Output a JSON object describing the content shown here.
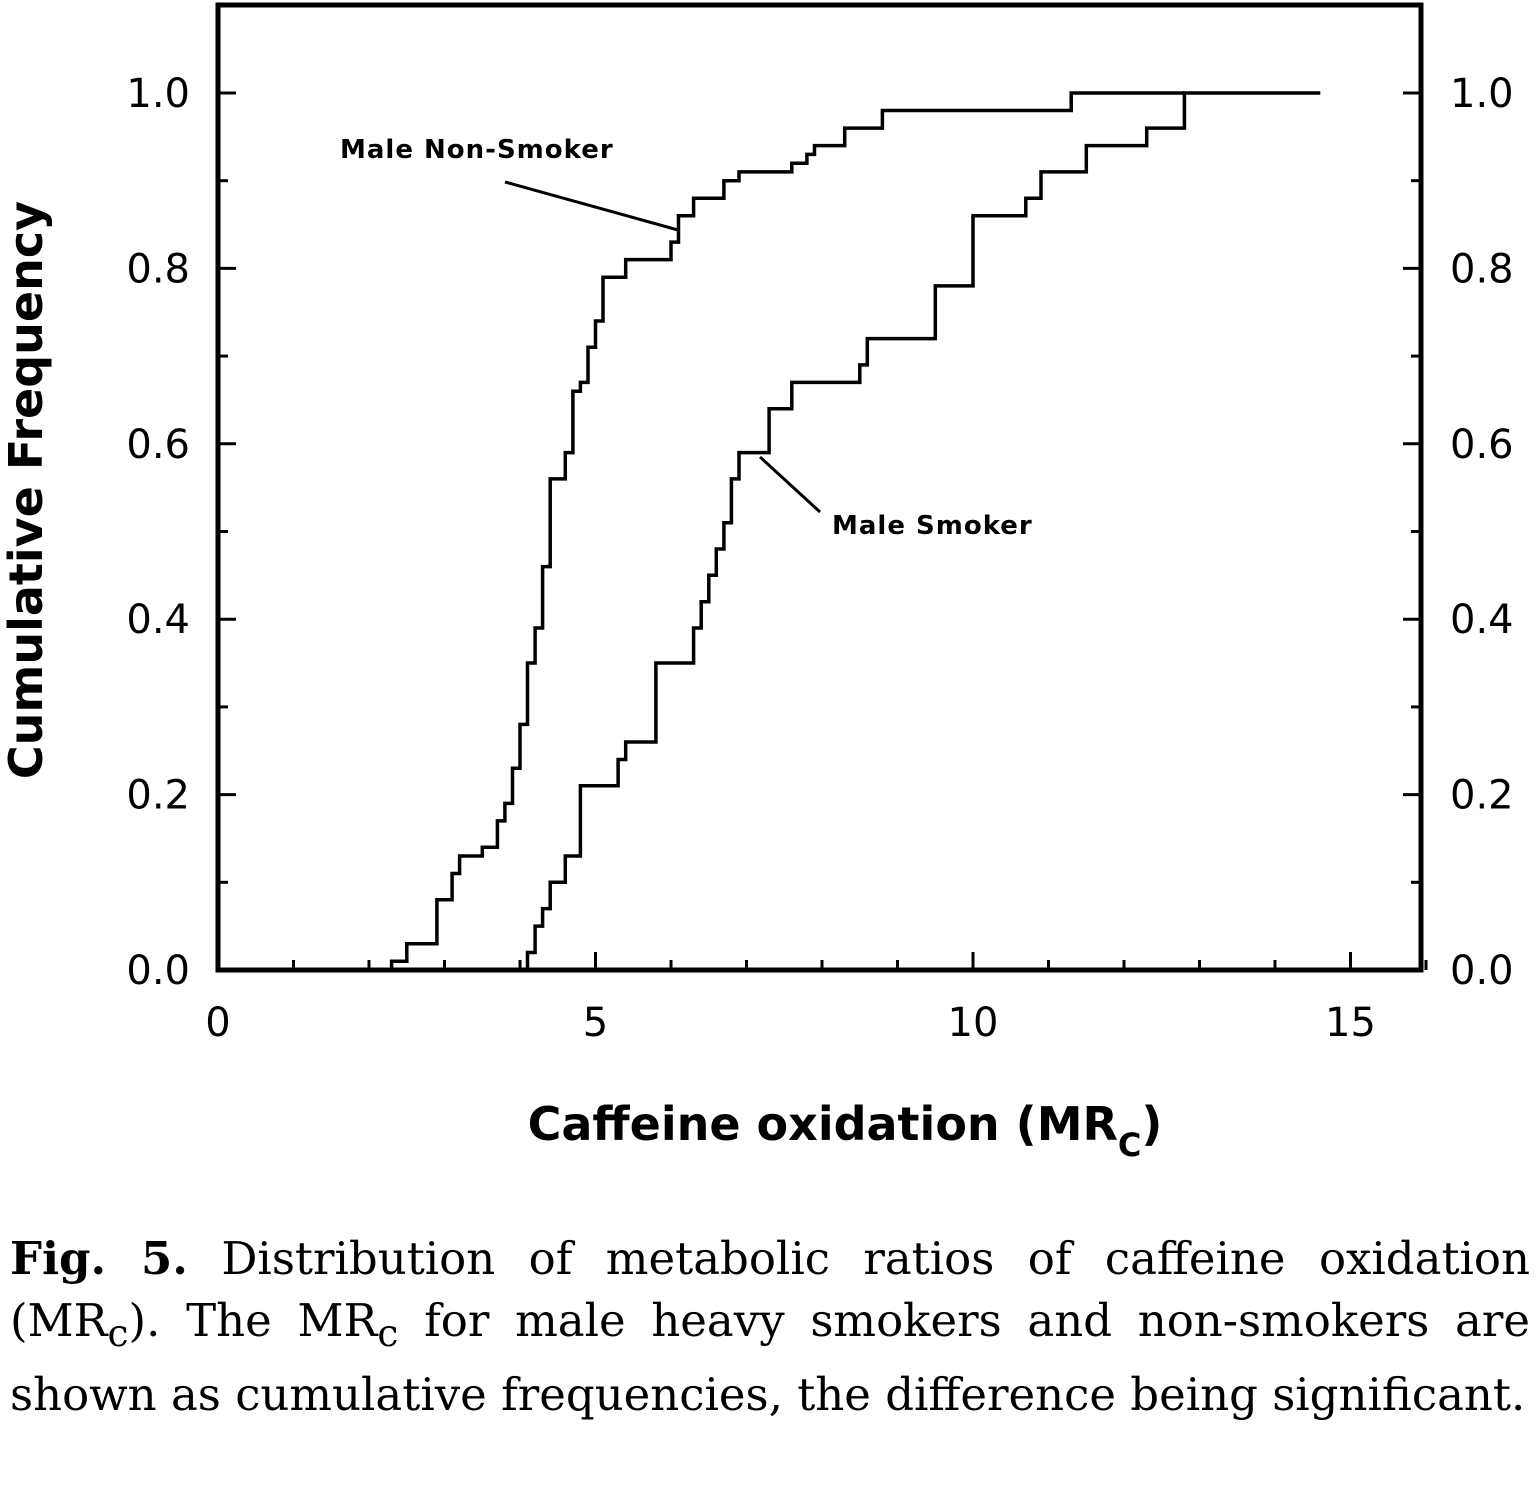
{
  "chart_data": {
    "type": "line",
    "step": true,
    "xlabel": "Caffeine oxidation (MR",
    "xlabel_sub": "C",
    "xlabel_close": ")",
    "ylabel": "Cumulative Frequency",
    "xlim": [
      0,
      16
    ],
    "ylim": [
      0,
      1.1
    ],
    "x_ticks": [
      "0",
      "5",
      "10",
      "15"
    ],
    "y_ticks": [
      "0.0",
      "0.2",
      "0.4",
      "0.6",
      "0.8",
      "1.0"
    ],
    "right_axis_ticks": [
      "0.0",
      "0.2",
      "0.4",
      "0.6",
      "0.8",
      "1.0"
    ],
    "grid": false,
    "series": [
      {
        "name": "Male Non-Smoker",
        "points": [
          [
            0,
            0
          ],
          [
            2.3,
            0
          ],
          [
            2.3,
            0.01
          ],
          [
            2.5,
            0.01
          ],
          [
            2.5,
            0.03
          ],
          [
            2.9,
            0.03
          ],
          [
            2.9,
            0.08
          ],
          [
            3.1,
            0.08
          ],
          [
            3.1,
            0.11
          ],
          [
            3.2,
            0.11
          ],
          [
            3.2,
            0.13
          ],
          [
            3.5,
            0.13
          ],
          [
            3.5,
            0.14
          ],
          [
            3.7,
            0.14
          ],
          [
            3.7,
            0.17
          ],
          [
            3.8,
            0.17
          ],
          [
            3.8,
            0.19
          ],
          [
            3.9,
            0.19
          ],
          [
            3.9,
            0.23
          ],
          [
            4.0,
            0.23
          ],
          [
            4.0,
            0.28
          ],
          [
            4.1,
            0.28
          ],
          [
            4.1,
            0.35
          ],
          [
            4.2,
            0.35
          ],
          [
            4.2,
            0.39
          ],
          [
            4.3,
            0.39
          ],
          [
            4.3,
            0.46
          ],
          [
            4.4,
            0.46
          ],
          [
            4.4,
            0.56
          ],
          [
            4.6,
            0.56
          ],
          [
            4.6,
            0.59
          ],
          [
            4.7,
            0.59
          ],
          [
            4.7,
            0.66
          ],
          [
            4.8,
            0.66
          ],
          [
            4.8,
            0.67
          ],
          [
            4.9,
            0.67
          ],
          [
            4.9,
            0.71
          ],
          [
            5.0,
            0.71
          ],
          [
            5.0,
            0.74
          ],
          [
            5.1,
            0.74
          ],
          [
            5.1,
            0.79
          ],
          [
            5.4,
            0.79
          ],
          [
            5.4,
            0.81
          ],
          [
            6.0,
            0.81
          ],
          [
            6.0,
            0.83
          ],
          [
            6.1,
            0.83
          ],
          [
            6.1,
            0.86
          ],
          [
            6.3,
            0.86
          ],
          [
            6.3,
            0.88
          ],
          [
            6.7,
            0.88
          ],
          [
            6.7,
            0.9
          ],
          [
            6.9,
            0.9
          ],
          [
            6.9,
            0.91
          ],
          [
            7.6,
            0.91
          ],
          [
            7.6,
            0.92
          ],
          [
            7.8,
            0.92
          ],
          [
            7.8,
            0.93
          ],
          [
            7.9,
            0.93
          ],
          [
            7.9,
            0.94
          ],
          [
            8.3,
            0.94
          ],
          [
            8.3,
            0.96
          ],
          [
            8.8,
            0.96
          ],
          [
            8.8,
            0.98
          ],
          [
            11.3,
            0.98
          ],
          [
            11.3,
            1.0
          ],
          [
            12.8,
            1.0
          ]
        ]
      },
      {
        "name": "Male Smoker",
        "points": [
          [
            0,
            0
          ],
          [
            4.1,
            0
          ],
          [
            4.1,
            0.02
          ],
          [
            4.2,
            0.02
          ],
          [
            4.2,
            0.05
          ],
          [
            4.3,
            0.05
          ],
          [
            4.3,
            0.07
          ],
          [
            4.4,
            0.07
          ],
          [
            4.4,
            0.1
          ],
          [
            4.6,
            0.1
          ],
          [
            4.6,
            0.13
          ],
          [
            4.8,
            0.13
          ],
          [
            4.8,
            0.21
          ],
          [
            5.3,
            0.21
          ],
          [
            5.3,
            0.24
          ],
          [
            5.4,
            0.24
          ],
          [
            5.4,
            0.26
          ],
          [
            5.8,
            0.26
          ],
          [
            5.8,
            0.35
          ],
          [
            6.3,
            0.35
          ],
          [
            6.3,
            0.39
          ],
          [
            6.4,
            0.39
          ],
          [
            6.4,
            0.42
          ],
          [
            6.5,
            0.42
          ],
          [
            6.5,
            0.45
          ],
          [
            6.6,
            0.45
          ],
          [
            6.6,
            0.48
          ],
          [
            6.7,
            0.48
          ],
          [
            6.7,
            0.51
          ],
          [
            6.8,
            0.51
          ],
          [
            6.8,
            0.56
          ],
          [
            6.9,
            0.56
          ],
          [
            6.9,
            0.59
          ],
          [
            7.3,
            0.59
          ],
          [
            7.3,
            0.64
          ],
          [
            7.6,
            0.64
          ],
          [
            7.6,
            0.67
          ],
          [
            8.5,
            0.67
          ],
          [
            8.5,
            0.69
          ],
          [
            8.6,
            0.69
          ],
          [
            8.6,
            0.72
          ],
          [
            9.5,
            0.72
          ],
          [
            9.5,
            0.78
          ],
          [
            10.0,
            0.78
          ],
          [
            10.0,
            0.86
          ],
          [
            10.7,
            0.86
          ],
          [
            10.7,
            0.88
          ],
          [
            10.9,
            0.88
          ],
          [
            10.9,
            0.91
          ],
          [
            11.5,
            0.91
          ],
          [
            11.5,
            0.94
          ],
          [
            12.3,
            0.94
          ],
          [
            12.3,
            0.96
          ],
          [
            12.8,
            0.96
          ],
          [
            12.8,
            1.0
          ],
          [
            14.6,
            1.0
          ]
        ]
      }
    ],
    "annotations": [
      "Male Non-Smoker",
      "Male Smoker"
    ]
  },
  "caption": {
    "label": "Fig. 5.",
    "text_1": " Distribution of metabolic ratios of caffeine oxidation (MR",
    "sub_1": "c",
    "text_2": "). The MR",
    "sub_2": "c",
    "text_3": " for male heavy smokers and non-smokers are shown as cumulative frequencies, the difference being significant."
  }
}
